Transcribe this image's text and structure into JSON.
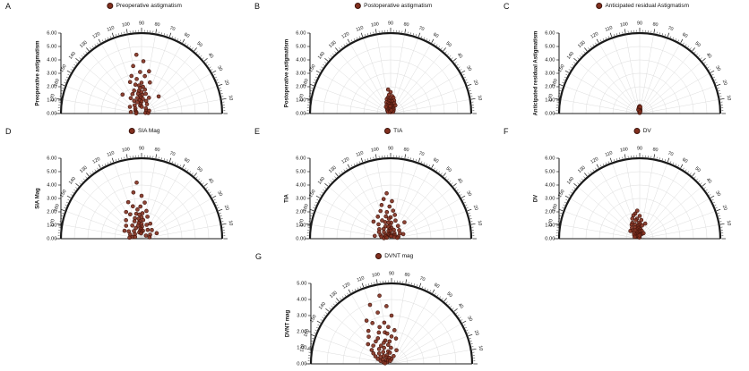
{
  "figure": {
    "background": "#ffffff"
  },
  "colors": {
    "marker_fill": "#82301f",
    "marker_stroke": "#3d130b",
    "grid": "#dcdcdc",
    "axis": "#1a1a1a",
    "text": "#111111"
  },
  "axes": {
    "theta_ticks": [
      10,
      20,
      30,
      40,
      50,
      60,
      70,
      80,
      90,
      100,
      110,
      120,
      130,
      140,
      150,
      160,
      170
    ],
    "theta_unit": "degrees"
  },
  "chart_data": [
    {
      "type": "scatter",
      "polar": true,
      "panel": "A",
      "legend": "Preoperative astigmatism",
      "ylabel": "Preoperative astigmatism",
      "rmax": 6,
      "rstep": 1,
      "points": [
        [
          95,
          4.4
        ],
        [
          88,
          3.9
        ],
        [
          100,
          3.6
        ],
        [
          80,
          3.2
        ],
        [
          92,
          3.1
        ],
        [
          105,
          2.9
        ],
        [
          85,
          2.8
        ],
        [
          98,
          2.6
        ],
        [
          110,
          2.5
        ],
        [
          75,
          2.4
        ],
        [
          90,
          2.3
        ],
        [
          102,
          2.2
        ],
        [
          95,
          2.1
        ],
        [
          87,
          2.0
        ],
        [
          93,
          1.9
        ],
        [
          108,
          1.8
        ],
        [
          82,
          1.8
        ],
        [
          97,
          1.7
        ],
        [
          90,
          1.6
        ],
        [
          115,
          1.6
        ],
        [
          78,
          1.5
        ],
        [
          100,
          1.5
        ],
        [
          88,
          1.4
        ],
        [
          95,
          1.3
        ],
        [
          105,
          1.2
        ],
        [
          92,
          1.2
        ],
        [
          85,
          1.1
        ],
        [
          120,
          1.1
        ],
        [
          98,
          1.0
        ],
        [
          70,
          1.0
        ],
        [
          90,
          0.9
        ],
        [
          110,
          0.9
        ],
        [
          130,
          0.8
        ],
        [
          60,
          0.8
        ],
        [
          95,
          0.7
        ],
        [
          100,
          0.6
        ],
        [
          140,
          0.6
        ],
        [
          50,
          0.5
        ],
        [
          88,
          0.5
        ],
        [
          155,
          0.5
        ],
        [
          30,
          0.4
        ],
        [
          165,
          0.4
        ],
        [
          10,
          0.3
        ],
        [
          172,
          0.8
        ],
        [
          5,
          0.5
        ],
        [
          178,
          0.4
        ],
        [
          45,
          1.8
        ],
        [
          135,
          2.0
        ],
        [
          125,
          1.4
        ],
        [
          65,
          1.3
        ],
        [
          150,
          1.0
        ],
        [
          20,
          0.6
        ]
      ]
    },
    {
      "type": "scatter",
      "polar": true,
      "panel": "B",
      "legend": "Postoperative astigmatism",
      "ylabel": "Postoperative astigmatism",
      "rmax": 6,
      "rstep": 1,
      "points": [
        [
          90,
          1.6
        ],
        [
          95,
          1.4
        ],
        [
          85,
          1.3
        ],
        [
          100,
          1.2
        ],
        [
          80,
          1.2
        ],
        [
          92,
          1.1
        ],
        [
          105,
          1.1
        ],
        [
          88,
          1.0
        ],
        [
          97,
          1.0
        ],
        [
          75,
          1.0
        ],
        [
          110,
          0.9
        ],
        [
          83,
          0.9
        ],
        [
          95,
          0.9
        ],
        [
          90,
          0.8
        ],
        [
          102,
          0.8
        ],
        [
          70,
          0.8
        ],
        [
          115,
          0.7
        ],
        [
          87,
          0.7
        ],
        [
          98,
          0.7
        ],
        [
          93,
          0.6
        ],
        [
          78,
          0.6
        ],
        [
          108,
          0.6
        ],
        [
          85,
          0.6
        ],
        [
          100,
          0.5
        ],
        [
          90,
          0.5
        ],
        [
          65,
          0.5
        ],
        [
          120,
          0.5
        ],
        [
          95,
          0.4
        ],
        [
          82,
          0.4
        ],
        [
          105,
          0.4
        ],
        [
          88,
          0.3
        ],
        [
          97,
          0.3
        ],
        [
          130,
          0.4
        ],
        [
          55,
          0.4
        ],
        [
          92,
          0.3
        ],
        [
          100,
          0.2
        ],
        [
          85,
          0.2
        ],
        [
          110,
          0.2
        ],
        [
          90,
          0.1
        ],
        [
          140,
          0.3
        ],
        [
          45,
          0.3
        ],
        [
          125,
          0.6
        ],
        [
          60,
          0.7
        ],
        [
          150,
          0.2
        ],
        [
          35,
          0.2
        ],
        [
          96,
          1.8
        ],
        [
          89,
          0.15
        ],
        [
          103,
          0.15
        ],
        [
          77,
          0.25
        ],
        [
          94,
          0.55
        ]
      ]
    },
    {
      "type": "scatter",
      "polar": true,
      "panel": "C",
      "legend": "Anticipated residual Astigmatism",
      "ylabel": "Anticipated residual Astigmatism",
      "rmax": 6,
      "rstep": 1,
      "points": [
        [
          90,
          0.5
        ],
        [
          95,
          0.45
        ],
        [
          85,
          0.4
        ],
        [
          100,
          0.4
        ],
        [
          92,
          0.35
        ],
        [
          88,
          0.3
        ],
        [
          97,
          0.3
        ],
        [
          82,
          0.3
        ],
        [
          105,
          0.25
        ],
        [
          90,
          0.25
        ],
        [
          94,
          0.2
        ],
        [
          86,
          0.2
        ],
        [
          100,
          0.2
        ],
        [
          78,
          0.2
        ],
        [
          92,
          0.15
        ],
        [
          96,
          0.15
        ],
        [
          88,
          0.1
        ],
        [
          102,
          0.1
        ],
        [
          90,
          0.1
        ],
        [
          84,
          0.15
        ],
        [
          95,
          0.1
        ],
        [
          91,
          0.05
        ],
        [
          87,
          0.05
        ],
        [
          99,
          0.05
        ],
        [
          93,
          0.3
        ],
        [
          89,
          0.35
        ],
        [
          104,
          0.35
        ],
        [
          81,
          0.25
        ],
        [
          98,
          0.25
        ],
        [
          94,
          0.4
        ],
        [
          110,
          0.3
        ],
        [
          75,
          0.15
        ],
        [
          90,
          0.55
        ],
        [
          96,
          0.5
        ],
        [
          85,
          0.5
        ]
      ]
    },
    {
      "type": "scatter",
      "polar": true,
      "panel": "D",
      "legend": "SIA Mag",
      "ylabel": "SIA Mag",
      "rmax": 6,
      "rstep": 1,
      "points": [
        [
          95,
          4.2
        ],
        [
          100,
          3.5
        ],
        [
          90,
          3.2
        ],
        [
          110,
          2.9
        ],
        [
          85,
          2.7
        ],
        [
          105,
          2.5
        ],
        [
          92,
          2.4
        ],
        [
          120,
          2.3
        ],
        [
          98,
          2.2
        ],
        [
          80,
          2.1
        ],
        [
          115,
          2.0
        ],
        [
          88,
          1.9
        ],
        [
          102,
          1.9
        ],
        [
          95,
          1.8
        ],
        [
          130,
          1.8
        ],
        [
          75,
          1.7
        ],
        [
          108,
          1.6
        ],
        [
          90,
          1.6
        ],
        [
          98,
          1.5
        ],
        [
          140,
          1.5
        ],
        [
          85,
          1.4
        ],
        [
          112,
          1.4
        ],
        [
          60,
          1.3
        ],
        [
          95,
          1.3
        ],
        [
          125,
          1.2
        ],
        [
          100,
          1.2
        ],
        [
          70,
          1.1
        ],
        [
          90,
          1.1
        ],
        [
          150,
          1.1
        ],
        [
          105,
          1.0
        ],
        [
          40,
          1.0
        ],
        [
          88,
          0.9
        ],
        [
          118,
          0.9
        ],
        [
          160,
          0.9
        ],
        [
          96,
          0.8
        ],
        [
          55,
          0.8
        ],
        [
          135,
          0.8
        ],
        [
          92,
          0.7
        ],
        [
          170,
          0.7
        ],
        [
          25,
          0.7
        ],
        [
          100,
          0.6
        ],
        [
          80,
          0.6
        ],
        [
          145,
          0.6
        ],
        [
          10,
          0.6
        ],
        [
          90,
          0.5
        ],
        [
          110,
          0.5
        ],
        [
          165,
          0.5
        ],
        [
          35,
          0.4
        ],
        [
          95,
          0.4
        ],
        [
          155,
          1.4
        ],
        [
          20,
          1.2
        ],
        [
          175,
          0.9
        ]
      ]
    },
    {
      "type": "scatter",
      "polar": true,
      "panel": "E",
      "legend": "TIA",
      "ylabel": "TIA",
      "rmax": 6,
      "rstep": 1,
      "points": [
        [
          95,
          3.4
        ],
        [
          100,
          3.0
        ],
        [
          88,
          2.8
        ],
        [
          105,
          2.6
        ],
        [
          92,
          2.4
        ],
        [
          110,
          2.2
        ],
        [
          85,
          2.1
        ],
        [
          98,
          2.0
        ],
        [
          120,
          1.9
        ],
        [
          80,
          1.8
        ],
        [
          102,
          1.7
        ],
        [
          90,
          1.6
        ],
        [
          115,
          1.5
        ],
        [
          95,
          1.5
        ],
        [
          130,
          1.4
        ],
        [
          75,
          1.4
        ],
        [
          108,
          1.3
        ],
        [
          88,
          1.2
        ],
        [
          98,
          1.2
        ],
        [
          140,
          1.1
        ],
        [
          60,
          1.1
        ],
        [
          112,
          1.0
        ],
        [
          92,
          1.0
        ],
        [
          150,
          1.0
        ],
        [
          45,
          0.9
        ],
        [
          100,
          0.9
        ],
        [
          125,
          0.9
        ],
        [
          85,
          0.8
        ],
        [
          160,
          0.8
        ],
        [
          30,
          0.8
        ],
        [
          95,
          0.7
        ],
        [
          135,
          0.7
        ],
        [
          70,
          0.7
        ],
        [
          168,
          0.7
        ],
        [
          15,
          0.6
        ],
        [
          105,
          0.6
        ],
        [
          90,
          0.6
        ],
        [
          145,
          0.5
        ],
        [
          55,
          0.5
        ],
        [
          175,
          0.5
        ],
        [
          8,
          0.5
        ],
        [
          98,
          0.4
        ],
        [
          120,
          0.4
        ],
        [
          40,
          0.4
        ],
        [
          155,
          0.4
        ],
        [
          88,
          0.3
        ],
        [
          110,
          0.3
        ],
        [
          25,
          0.3
        ],
        [
          165,
          0.3
        ],
        [
          95,
          0.2
        ],
        [
          78,
          0.2
        ],
        [
          135,
          1.8
        ],
        [
          50,
          1.6
        ],
        [
          20,
          1.0
        ],
        [
          170,
          1.2
        ]
      ]
    },
    {
      "type": "scatter",
      "polar": true,
      "panel": "F",
      "legend": "DV",
      "ylabel": "DV",
      "rmax": 6,
      "rstep": 1,
      "points": [
        [
          95,
          2.1
        ],
        [
          100,
          1.9
        ],
        [
          105,
          1.8
        ],
        [
          90,
          1.7
        ],
        [
          110,
          1.6
        ],
        [
          98,
          1.5
        ],
        [
          85,
          1.4
        ],
        [
          102,
          1.4
        ],
        [
          115,
          1.3
        ],
        [
          92,
          1.2
        ],
        [
          120,
          1.2
        ],
        [
          88,
          1.1
        ],
        [
          108,
          1.1
        ],
        [
          95,
          1.0
        ],
        [
          125,
          1.0
        ],
        [
          80,
          1.0
        ],
        [
          100,
          0.9
        ],
        [
          112,
          0.9
        ],
        [
          90,
          0.8
        ],
        [
          130,
          0.8
        ],
        [
          97,
          0.8
        ],
        [
          85,
          0.7
        ],
        [
          105,
          0.7
        ],
        [
          118,
          0.7
        ],
        [
          75,
          0.6
        ],
        [
          95,
          0.6
        ],
        [
          135,
          0.6
        ],
        [
          100,
          0.5
        ],
        [
          110,
          0.5
        ],
        [
          88,
          0.5
        ],
        [
          145,
          0.5
        ],
        [
          92,
          0.4
        ],
        [
          122,
          0.4
        ],
        [
          102,
          0.4
        ],
        [
          65,
          0.4
        ],
        [
          98,
          0.3
        ],
        [
          115,
          0.3
        ],
        [
          85,
          0.3
        ],
        [
          150,
          0.3
        ],
        [
          95,
          0.2
        ],
        [
          105,
          0.2
        ],
        [
          128,
          0.2
        ],
        [
          90,
          0.15
        ],
        [
          110,
          0.1
        ],
        [
          100,
          0.1
        ],
        [
          160,
          0.4
        ],
        [
          55,
          0.5
        ],
        [
          140,
          0.9
        ],
        [
          70,
          1.2
        ],
        [
          93,
          0.25
        ]
      ]
    },
    {
      "type": "scatter",
      "polar": true,
      "panel": "G",
      "legend": "DVNT mag",
      "ylabel": "DVNT mag",
      "rmax": 5,
      "rstep": 1,
      "points": [
        [
          100,
          4.3
        ],
        [
          110,
          3.9
        ],
        [
          95,
          3.6
        ],
        [
          105,
          3.3
        ],
        [
          120,
          3.1
        ],
        [
          90,
          3.0
        ],
        [
          115,
          2.8
        ],
        [
          100,
          2.6
        ],
        [
          125,
          2.5
        ],
        [
          108,
          2.4
        ],
        [
          95,
          2.3
        ],
        [
          130,
          2.2
        ],
        [
          112,
          2.1
        ],
        [
          102,
          2.0
        ],
        [
          140,
          1.9
        ],
        [
          98,
          1.9
        ],
        [
          118,
          1.8
        ],
        [
          90,
          1.7
        ],
        [
          125,
          1.7
        ],
        [
          135,
          1.6
        ],
        [
          105,
          1.5
        ],
        [
          145,
          1.5
        ],
        [
          110,
          1.4
        ],
        [
          95,
          1.4
        ],
        [
          150,
          1.3
        ],
        [
          120,
          1.3
        ],
        [
          130,
          1.2
        ],
        [
          100,
          1.2
        ],
        [
          155,
          1.1
        ],
        [
          115,
          1.1
        ],
        [
          140,
          1.0
        ],
        [
          92,
          1.0
        ],
        [
          160,
          0.9
        ],
        [
          125,
          0.9
        ],
        [
          105,
          0.8
        ],
        [
          148,
          0.8
        ],
        [
          135,
          0.7
        ],
        [
          165,
          0.7
        ],
        [
          98,
          0.7
        ],
        [
          118,
          0.6
        ],
        [
          155,
          0.6
        ],
        [
          128,
          0.5
        ],
        [
          170,
          0.5
        ],
        [
          108,
          0.4
        ],
        [
          142,
          0.4
        ],
        [
          90,
          0.3
        ],
        [
          160,
          0.3
        ],
        [
          135,
          0.3
        ],
        [
          175,
          0.4
        ],
        [
          115,
          0.2
        ],
        [
          80,
          1.6
        ],
        [
          70,
          0.9
        ],
        [
          85,
          2.1
        ],
        [
          75,
          0.5
        ]
      ]
    }
  ]
}
